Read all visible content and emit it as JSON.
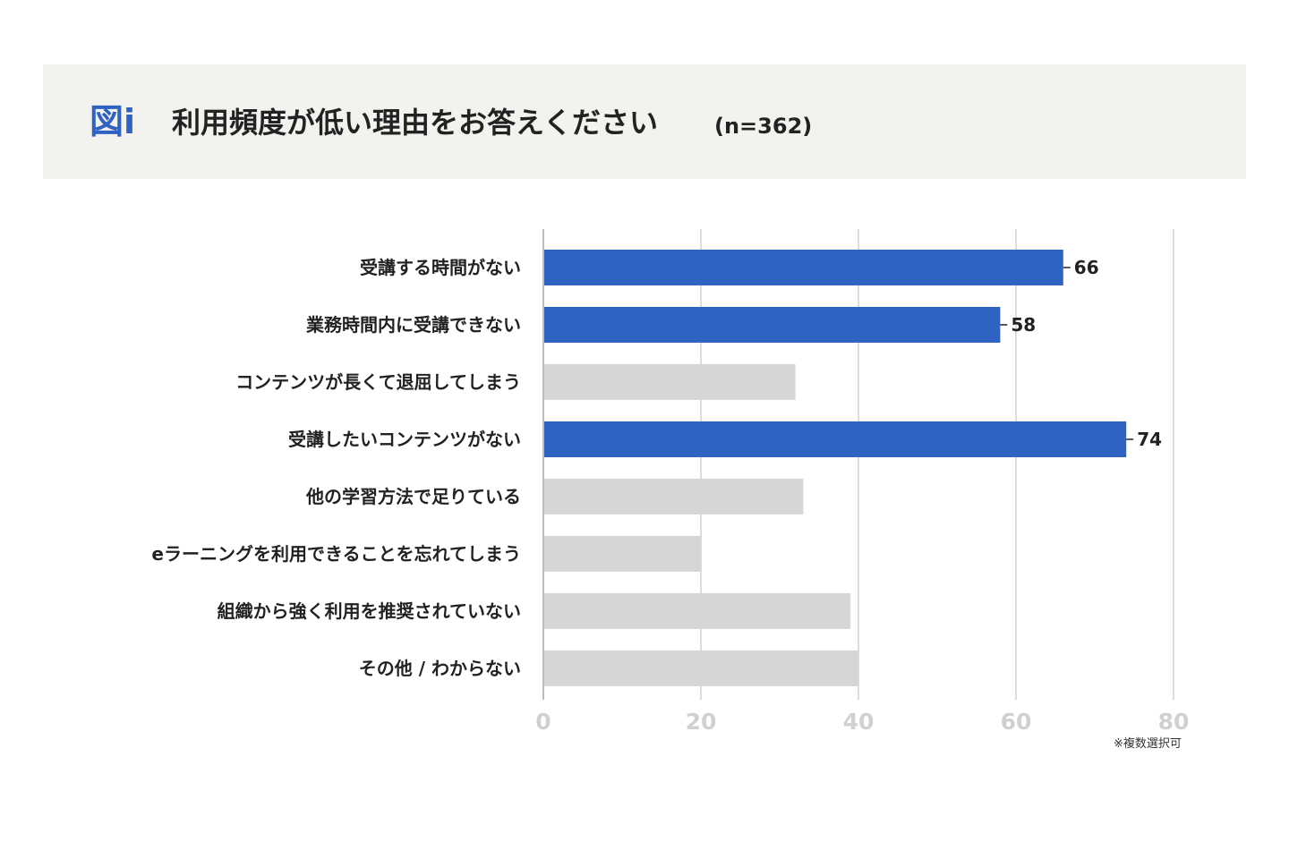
{
  "header": {
    "fig_label": "図i",
    "title": "利用頻度が低い理由をお答えください",
    "sample": "(n=362)"
  },
  "footnote": "※複数選択可",
  "colors": {
    "highlight": "#2f62c2",
    "default": "#d6d6d6",
    "grid": "#d0d0d0",
    "tick_text": "#d0d0d0",
    "header_bg": "#f4f2ee"
  },
  "chart_data": {
    "type": "bar",
    "orientation": "horizontal",
    "categories": [
      "受講する時間がない",
      "業務時間内に受講できない",
      "コンテンツが長くて退屈してしまう",
      "受講したいコンテンツがない",
      "他の学習方法で足りている",
      "eラーニングを利用できることを忘れてしまう",
      "組織から強く利用を推奨されていない",
      "その他 / わからない"
    ],
    "values": [
      66,
      58,
      32,
      74,
      33,
      20,
      39,
      40
    ],
    "highlighted": [
      true,
      true,
      false,
      true,
      false,
      false,
      false,
      false
    ],
    "value_labels": [
      "66",
      "58",
      "",
      "74",
      "",
      "",
      "",
      ""
    ],
    "xlim": [
      0,
      80
    ],
    "xticks": [
      0,
      20,
      40,
      60,
      80
    ],
    "grid": true
  }
}
